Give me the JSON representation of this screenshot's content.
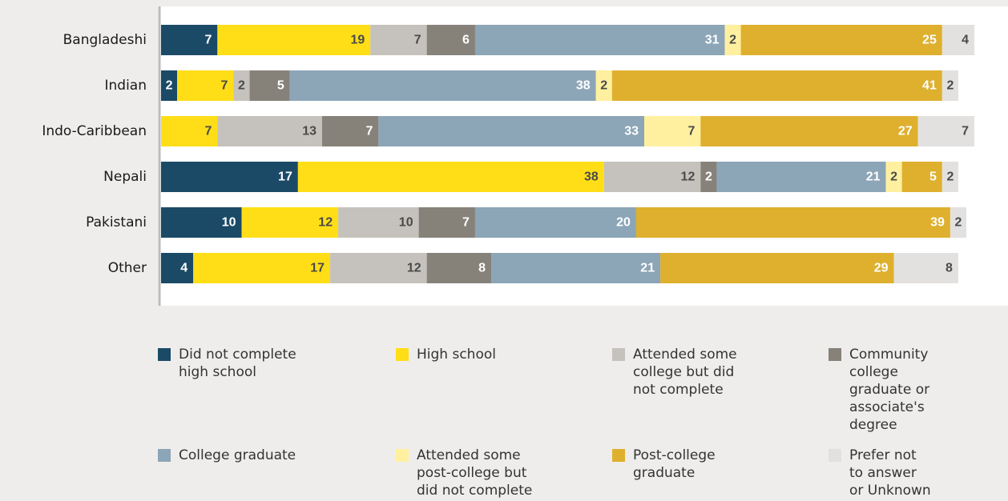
{
  "chart_data": {
    "type": "stacked-bar-horizontal",
    "categories": [
      "Bangladeshi",
      "Indian",
      "Indo-Caribbean",
      "Nepali",
      "Pakistani",
      "Other"
    ],
    "series": [
      {
        "name": "Did not complete high school",
        "color": "#1b4a67",
        "values": [
          7,
          2,
          null,
          17,
          10,
          4
        ]
      },
      {
        "name": "High school",
        "color": "#ffde17",
        "values": [
          19,
          7,
          7,
          38,
          12,
          17
        ]
      },
      {
        "name": "Attended some college but did not complete",
        "color": "#c5c1bc",
        "values": [
          7,
          2,
          13,
          12,
          10,
          12
        ]
      },
      {
        "name": "Community college graduate or associate's degree",
        "color": "#86827a",
        "values": [
          6,
          5,
          7,
          2,
          7,
          8
        ]
      },
      {
        "name": "College graduate",
        "color": "#8ca5b7",
        "values": [
          31,
          38,
          33,
          21,
          20,
          21
        ]
      },
      {
        "name": "Attended some post-college but did not complete",
        "color": "#fff0a0",
        "values": [
          2,
          2,
          7,
          2,
          null,
          null
        ]
      },
      {
        "name": "Post-college graduate",
        "color": "#deb02e",
        "values": [
          25,
          41,
          27,
          5,
          39,
          29
        ]
      },
      {
        "name": "Prefer not to answer or Unknown",
        "color": "#e3e1df",
        "values": [
          4,
          2,
          7,
          2,
          2,
          8
        ]
      }
    ]
  }
}
